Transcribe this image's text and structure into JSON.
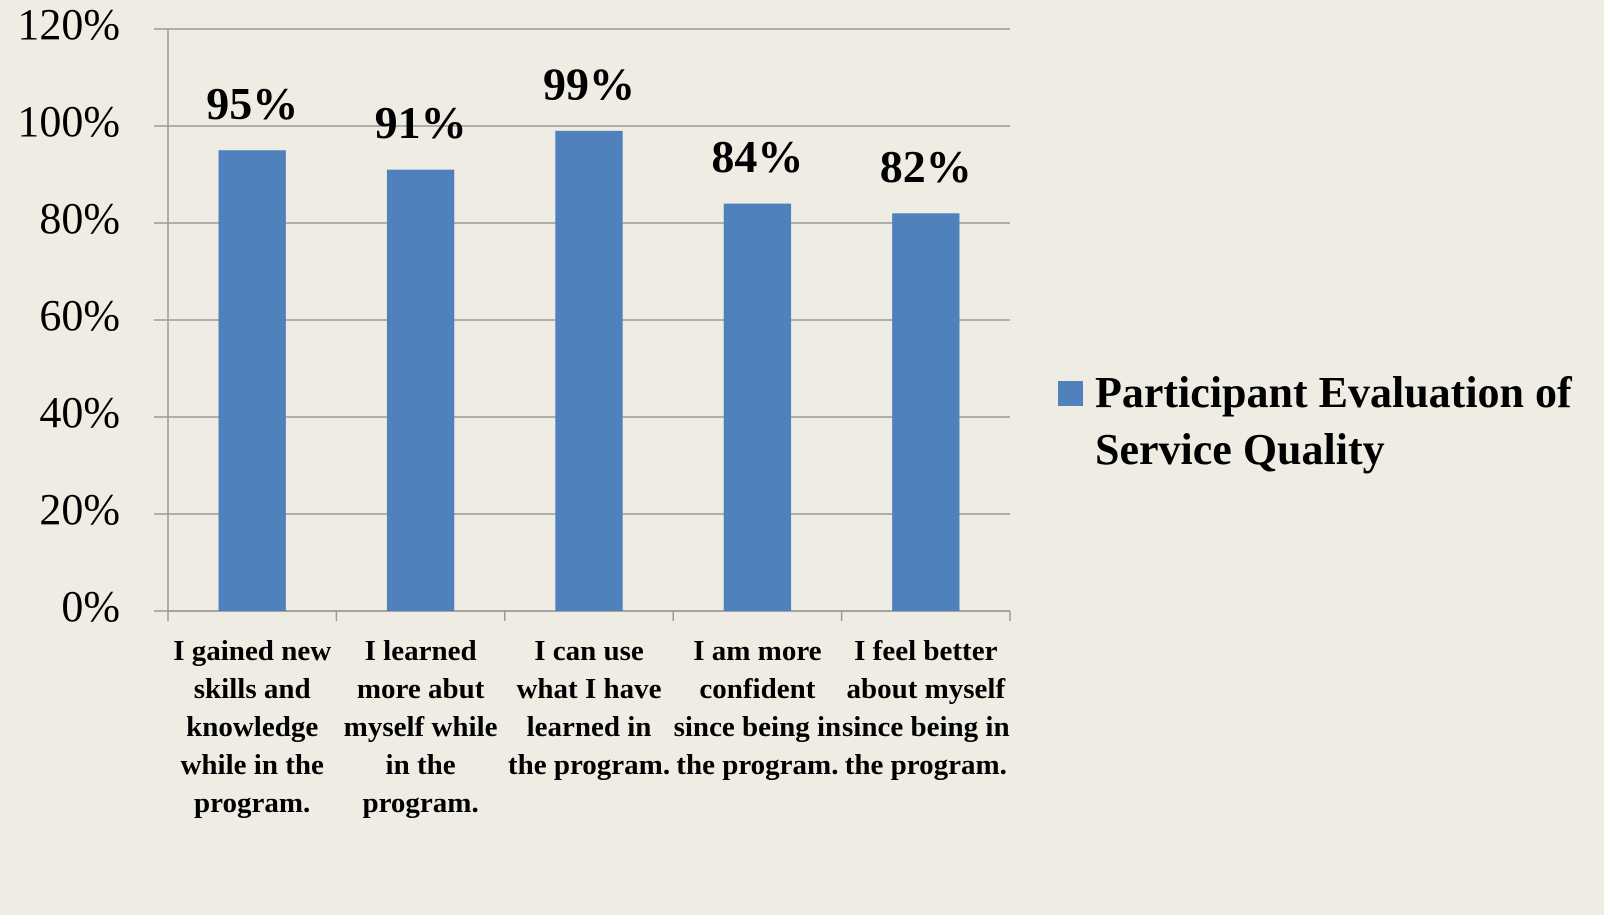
{
  "chart_data": {
    "type": "bar",
    "categories": [
      "I gained new skills and knowledge while in the program.",
      "I learned more abut myself while in the program.",
      "I can use what I have learned in the program.",
      "I am more confident since being in the program.",
      "I feel better about myself since being in the program."
    ],
    "series": [
      {
        "name": "Participant Evaluation of Service Quality",
        "color": "#4f81bd",
        "values": [
          95,
          91,
          99,
          84,
          82
        ],
        "value_labels": [
          "95%",
          "91%",
          "99%",
          "84%",
          "82%"
        ]
      }
    ],
    "ylim": [
      0,
      120
    ],
    "yticks": [
      {
        "value": 0,
        "label": "0%"
      },
      {
        "value": 20,
        "label": "20%"
      },
      {
        "value": 40,
        "label": "40%"
      },
      {
        "value": 60,
        "label": "60%"
      },
      {
        "value": 80,
        "label": "80%"
      },
      {
        "value": 100,
        "label": "100%"
      },
      {
        "value": 120,
        "label": "120%"
      }
    ],
    "grid": true,
    "legend": "right"
  }
}
